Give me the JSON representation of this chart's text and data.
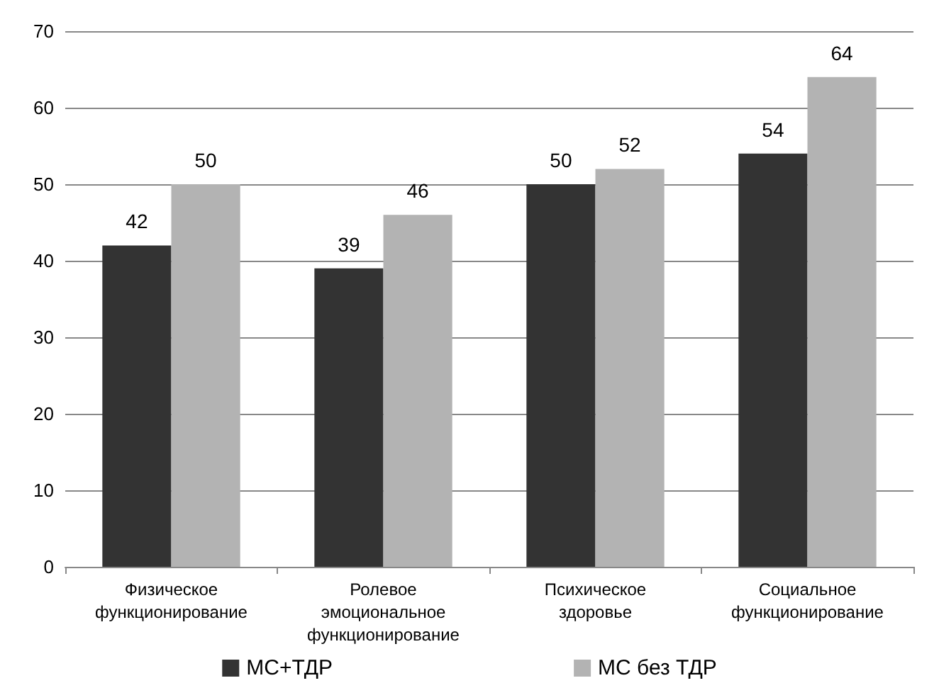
{
  "chart_data": {
    "type": "bar",
    "categories": [
      "Физическое функционирование",
      "Ролевое эмоциональное функционирование",
      "Психическое здоровье",
      "Социальное функционирование"
    ],
    "series": [
      {
        "name": "МС+ТДР",
        "color": "#333333",
        "values": [
          42,
          39,
          50,
          54
        ]
      },
      {
        "name": "МС без ТДР",
        "color": "#b3b3b3",
        "values": [
          50,
          46,
          52,
          64
        ]
      }
    ],
    "ylim": [
      0,
      70
    ],
    "yticks": [
      0,
      10,
      20,
      30,
      40,
      50,
      60,
      70
    ],
    "grid": "y",
    "legend": "bottom",
    "data_labels": true
  }
}
